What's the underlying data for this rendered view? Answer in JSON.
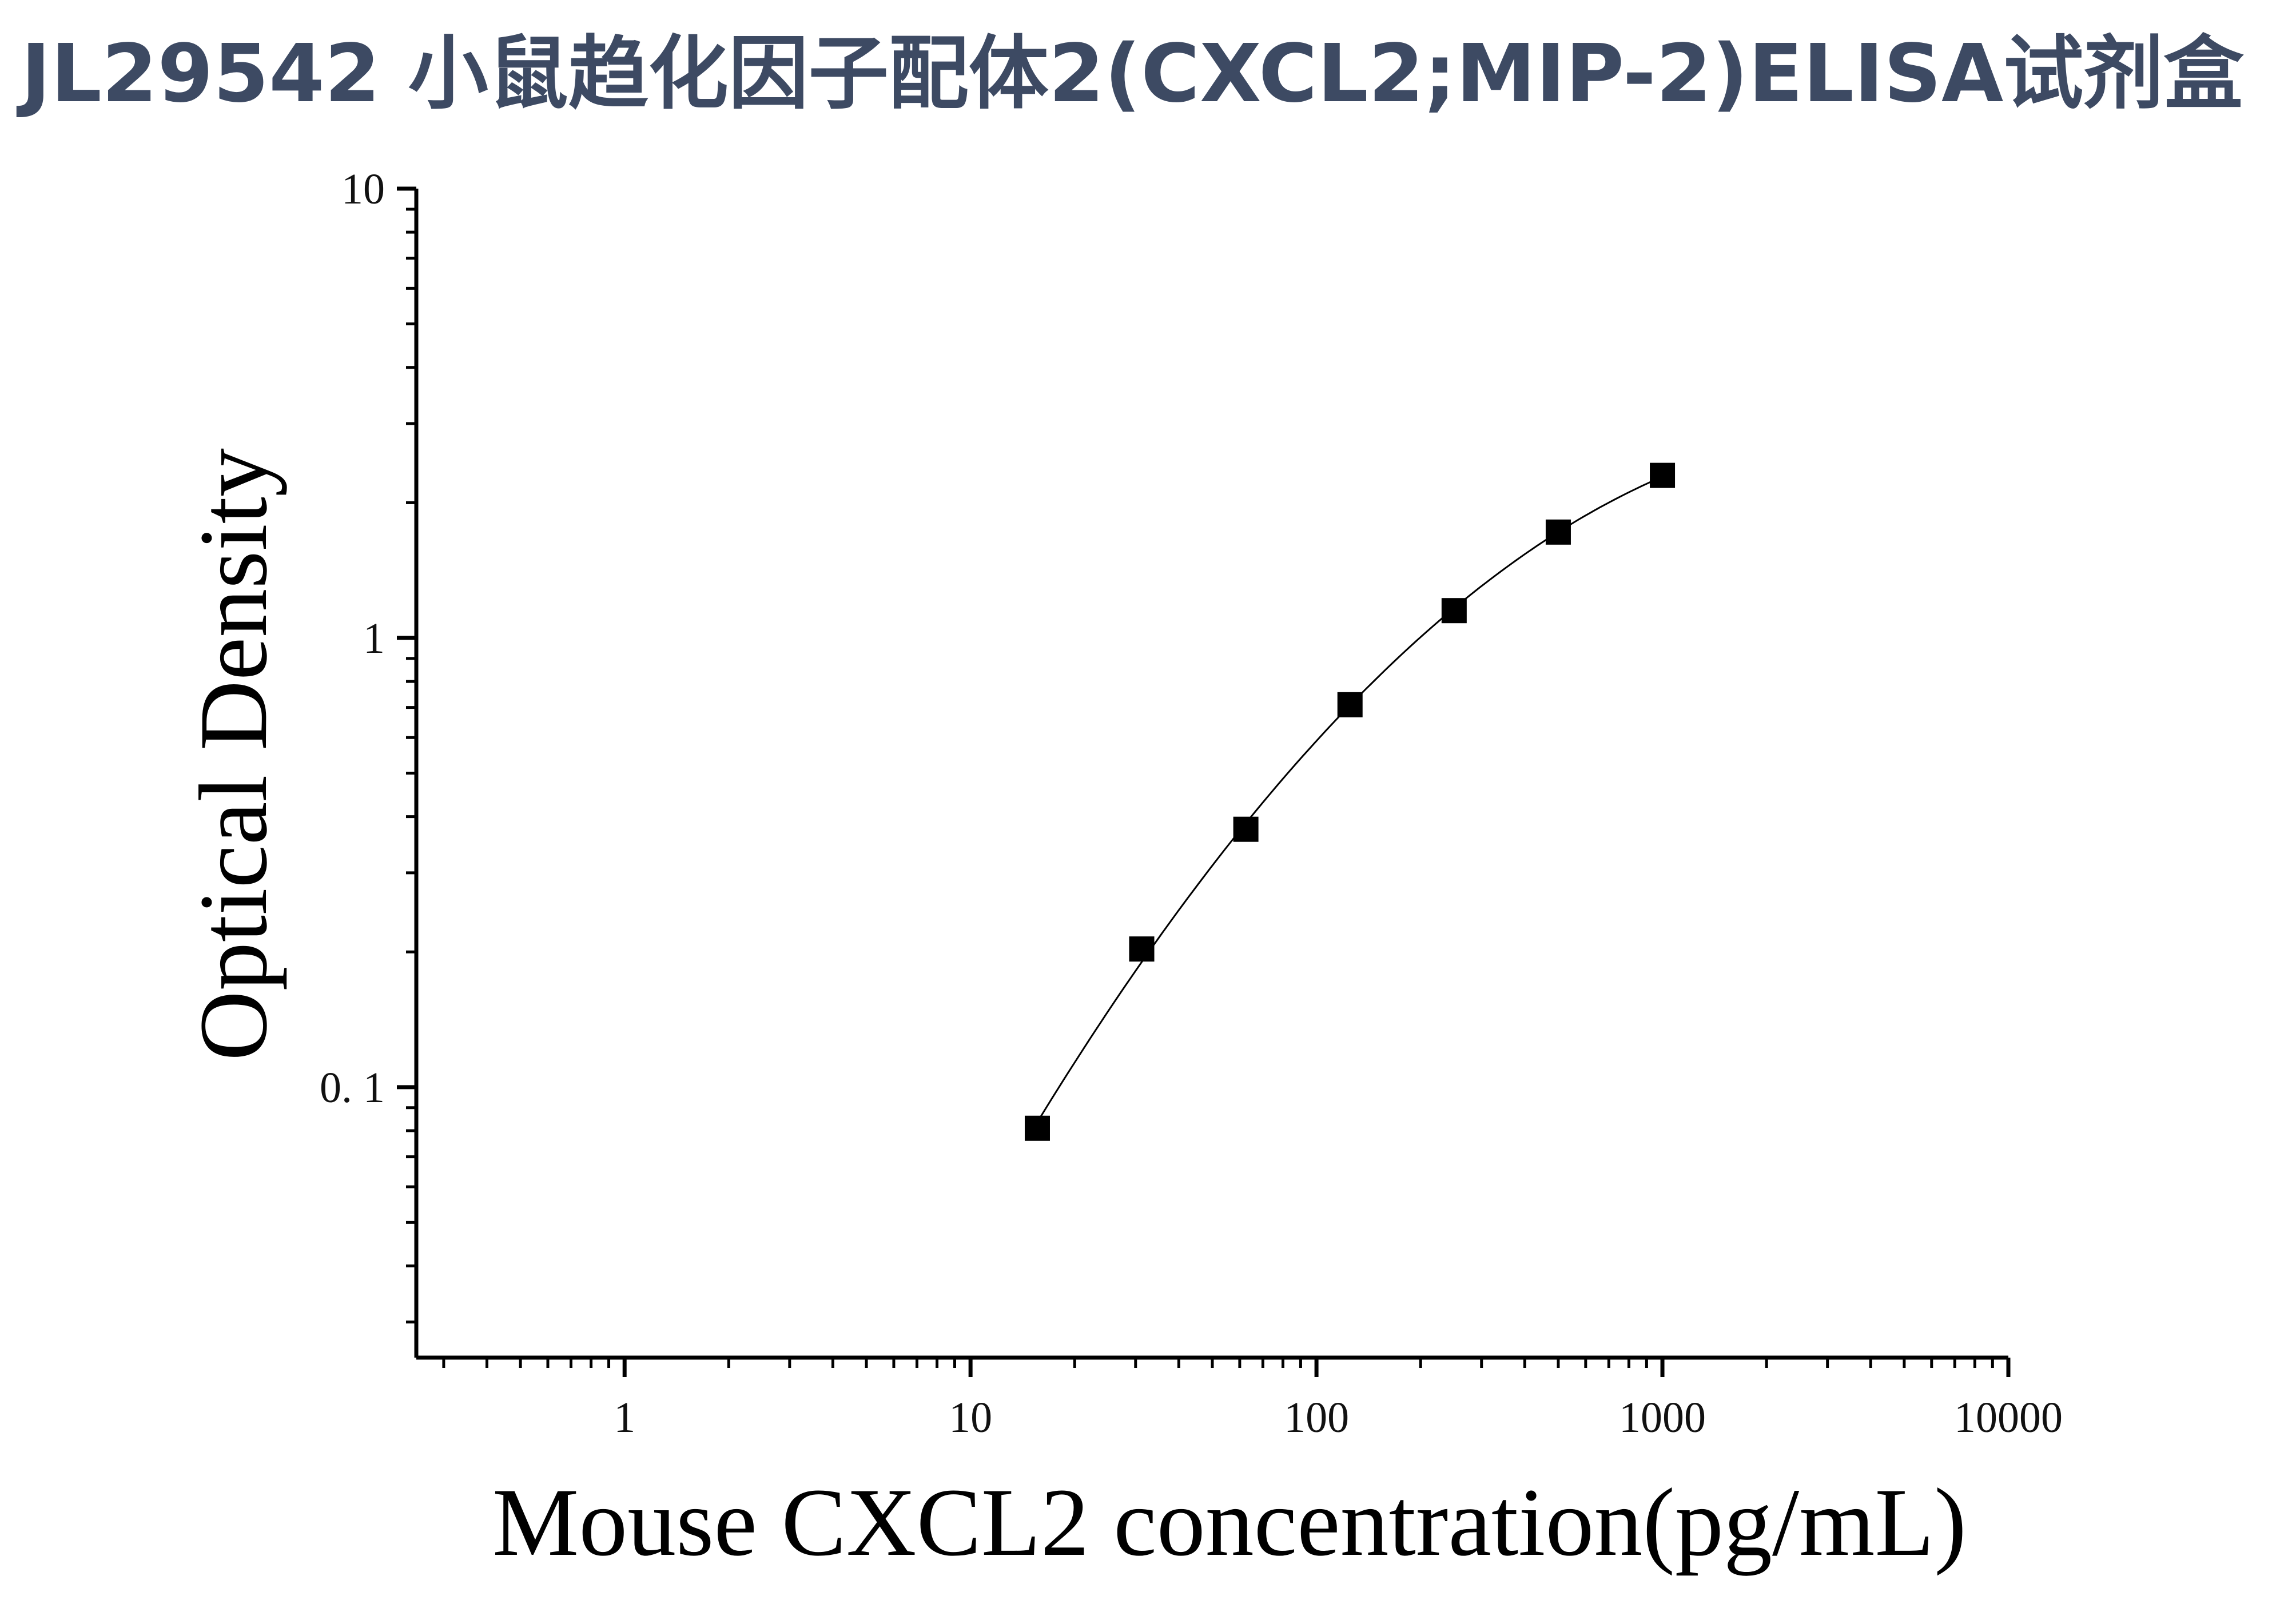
{
  "title": "JL29542 小鼠趋化因子配体2(CXCL2;MIP-2)ELISA试剂盒",
  "chart_data": {
    "type": "scatter",
    "xlabel": "Mouse CXCL2 concentration(pg/mL)",
    "ylabel": "Optical Density",
    "xscale": "log",
    "yscale": "log",
    "xlim": [
      0.25,
      10000
    ],
    "ylim": [
      0.025,
      10
    ],
    "x_ticks": [
      1,
      10,
      100,
      1000,
      10000
    ],
    "x_tick_labels": [
      "1",
      "10",
      "100",
      "1000",
      "10000"
    ],
    "y_ticks": [
      0.1,
      1,
      10
    ],
    "y_tick_labels": [
      "0. 1",
      "1",
      "10"
    ],
    "grid": false,
    "series": [
      {
        "x": [
          15.6,
          31.25,
          62.5,
          125,
          250,
          500,
          1000
        ],
        "y": [
          0.081,
          0.203,
          0.375,
          0.71,
          1.15,
          1.72,
          2.3
        ],
        "marker": "square",
        "color": "#000000",
        "fit_curve": true
      }
    ]
  }
}
